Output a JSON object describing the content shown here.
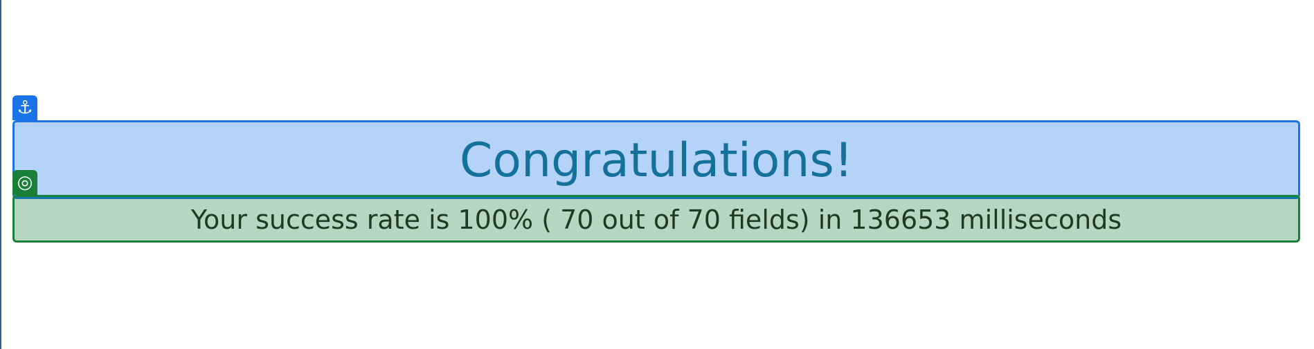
{
  "heading": {
    "text": "Congratulations!"
  },
  "result": {
    "text": "Your success rate is 100% ( 70 out of 70 fields) in 136653 milliseconds"
  },
  "overlays": {
    "anchor_icon": "anchor-icon",
    "target_icon": "target-icon",
    "anchor_color": "#1a73e8",
    "target_color": "#188038"
  }
}
